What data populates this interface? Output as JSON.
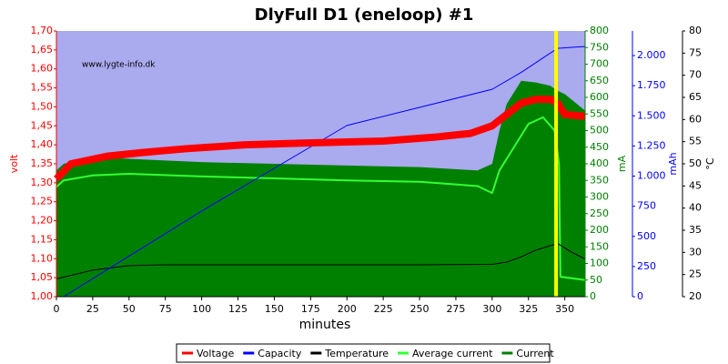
{
  "chart_data": {
    "type": "line",
    "title": "DlyFull D1 (eneloop) #1",
    "annotation": "www.lygte-info.dk",
    "xlabel": "minutes",
    "xlim": [
      0,
      364
    ],
    "xticks": [
      0,
      25,
      50,
      75,
      100,
      125,
      150,
      175,
      200,
      225,
      250,
      275,
      300,
      325,
      350
    ],
    "plot_color": "#aaaaee",
    "marker": {
      "x": 344,
      "color": "#ffff00"
    },
    "axes": [
      {
        "label": "volt",
        "color": "#ff0000",
        "lim": [
          1.0,
          1.7
        ],
        "ticks": [
          {
            "value": 1.0,
            "label": "1,00"
          },
          {
            "value": 1.05,
            "label": "1,05"
          },
          {
            "value": 1.1,
            "label": "1,10"
          },
          {
            "value": 1.15,
            "label": "1,15"
          },
          {
            "value": 1.2,
            "label": "1,20"
          },
          {
            "value": 1.25,
            "label": "1,25"
          },
          {
            "value": 1.3,
            "label": "1,30"
          },
          {
            "value": 1.35,
            "label": "1,35"
          },
          {
            "value": 1.4,
            "label": "1,40"
          },
          {
            "value": 1.45,
            "label": "1,45"
          },
          {
            "value": 1.5,
            "label": "1,50"
          },
          {
            "value": 1.55,
            "label": "1,55"
          },
          {
            "value": 1.6,
            "label": "1,60"
          },
          {
            "value": 1.65,
            "label": "1,65"
          },
          {
            "value": 1.7,
            "label": "1,70"
          }
        ]
      },
      {
        "label": "mA",
        "color": "#008000",
        "lim": [
          0,
          800
        ],
        "ticks": [
          0,
          50,
          100,
          150,
          200,
          250,
          300,
          350,
          400,
          450,
          500,
          550,
          600,
          650,
          700,
          750,
          800
        ]
      },
      {
        "label": "mAh",
        "color": "#0000ff",
        "lim": [
          0,
          2204
        ],
        "ticks": [
          0,
          250,
          500,
          750,
          {
            "value": 1000,
            "label": "1.000"
          },
          {
            "value": 1250,
            "label": "1.250"
          },
          {
            "value": 1500,
            "label": "1.500"
          },
          {
            "value": 1750,
            "label": "1.750"
          },
          {
            "value": 2000,
            "label": "2.000"
          }
        ]
      },
      {
        "label": "°C",
        "color": "#000000",
        "lim": [
          20,
          80
        ],
        "ticks": [
          20,
          25,
          30,
          35,
          40,
          45,
          50,
          55,
          60,
          65,
          70,
          75,
          80
        ]
      }
    ],
    "series": [
      {
        "name": "Current",
        "color": "#008000",
        "axis": 1,
        "fill": true,
        "x": [
          0,
          5,
          25,
          50,
          75,
          100,
          150,
          200,
          250,
          290,
          300,
          305,
          310,
          320,
          330,
          340,
          345,
          350,
          364
        ],
        "values": [
          380,
          400,
          420,
          415,
          410,
          405,
          400,
          395,
          390,
          380,
          400,
          500,
          580,
          650,
          645,
          635,
          620,
          610,
          560
        ]
      },
      {
        "name": "Average current",
        "color": "#33ff33",
        "axis": 1,
        "width": 2,
        "x": [
          0,
          5,
          25,
          50,
          100,
          150,
          200,
          250,
          290,
          300,
          305,
          315,
          325,
          335,
          343,
          346,
          347,
          364
        ],
        "values": [
          330,
          350,
          365,
          370,
          362,
          356,
          350,
          346,
          333,
          312,
          380,
          450,
          520,
          540,
          500,
          400,
          60,
          50
        ]
      },
      {
        "name": "Temperature",
        "color": "#000000",
        "axis": 3,
        "width": 1,
        "x": [
          0,
          25,
          50,
          75,
          100,
          150,
          200,
          250,
          300,
          310,
          320,
          330,
          345,
          355,
          364
        ],
        "values": [
          24,
          26,
          27,
          27.2,
          27.2,
          27.2,
          27.2,
          27.2,
          27.3,
          27.8,
          29,
          30.5,
          32,
          30,
          28.5
        ]
      },
      {
        "name": "Capacity",
        "color": "#0000ff",
        "axis": 2,
        "width": 1,
        "x": [
          5,
          100,
          200,
          300,
          320,
          345,
          364
        ],
        "values": [
          0,
          710,
          1420,
          1720,
          1860,
          2060,
          2075
        ]
      },
      {
        "name": "Voltage",
        "color": "#ff0000",
        "axis": 0,
        "width": 8,
        "x": [
          0,
          10,
          35,
          60,
          90,
          130,
          175,
          225,
          260,
          285,
          300,
          310,
          320,
          330,
          340,
          345,
          350,
          364
        ],
        "values": [
          1.31,
          1.35,
          1.37,
          1.38,
          1.39,
          1.4,
          1.405,
          1.41,
          1.42,
          1.43,
          1.45,
          1.48,
          1.51,
          1.52,
          1.52,
          1.51,
          1.48,
          1.475
        ]
      }
    ],
    "legend_order": [
      4,
      3,
      2,
      1,
      0
    ]
  }
}
